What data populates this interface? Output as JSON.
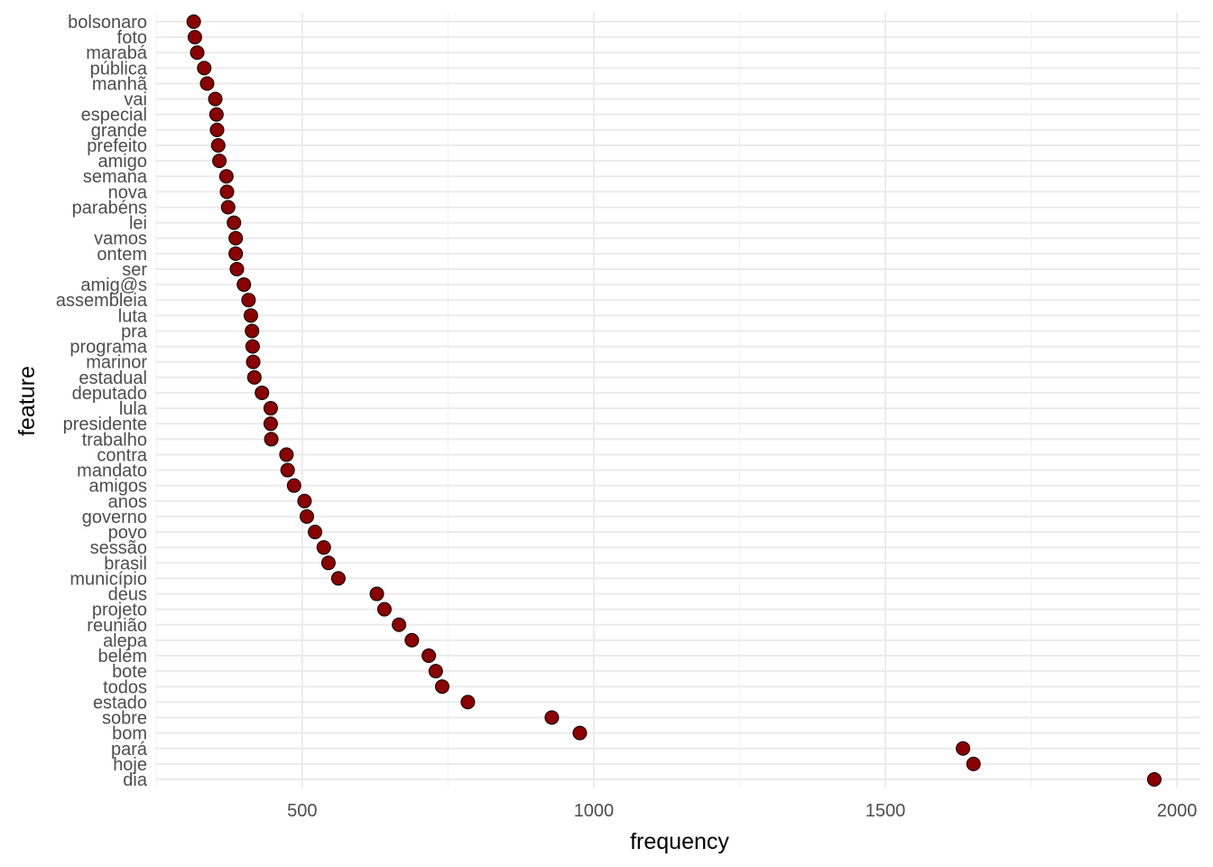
{
  "chart_data": {
    "type": "scatter",
    "title": "",
    "xlabel": "frequency",
    "ylabel": "feature",
    "xlim": [
      248,
      2040
    ],
    "x_ticks": [
      500,
      1000,
      1500,
      2000
    ],
    "x_tick_labels": [
      "500",
      "1000",
      "1500",
      "2000"
    ],
    "grid": true,
    "point_fill": "#8b0000",
    "point_stroke": "#000000",
    "categories": [
      "bolsonaro",
      "foto",
      "marabá",
      "pública",
      "manhã",
      "vai",
      "especial",
      "grande",
      "prefeito",
      "amigo",
      "semana",
      "nova",
      "parabéns",
      "lei",
      "vamos",
      "ontem",
      "ser",
      "amig@s",
      "assembleia",
      "luta",
      "pra",
      "programa",
      "marinor",
      "estadual",
      "deputado",
      "lula",
      "presidente",
      "trabalho",
      "contra",
      "mandato",
      "amigos",
      "anos",
      "governo",
      "povo",
      "sessão",
      "brasil",
      "município",
      "deus",
      "projeto",
      "reunião",
      "alepa",
      "belém",
      "bote",
      "todos",
      "estado",
      "sobre",
      "bom",
      "pará",
      "hoje",
      "dia"
    ],
    "values": [
      314,
      316,
      320,
      332,
      337,
      351,
      353,
      354,
      356,
      358,
      370,
      371,
      373,
      383,
      386,
      386,
      388,
      400,
      408,
      412,
      414,
      415,
      416,
      418,
      431,
      446,
      446,
      447,
      473,
      475,
      486,
      504,
      508,
      522,
      537,
      545,
      562,
      628,
      641,
      666,
      688,
      717,
      729,
      740,
      784,
      928,
      976,
      1633,
      1651,
      1961
    ]
  }
}
